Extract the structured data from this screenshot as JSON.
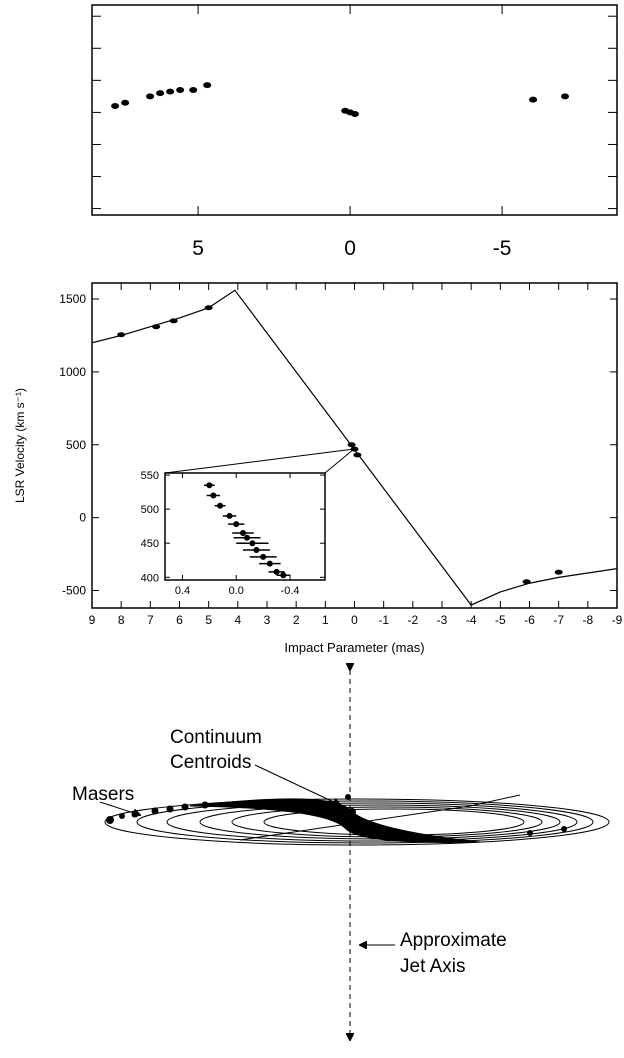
{
  "chart_data": [
    {
      "type": "scatter",
      "x": [
        7.73,
        7.4,
        6.58,
        6.25,
        5.92,
        5.59,
        5.16,
        4.7,
        0.16,
        0,
        -0.16,
        -6.02,
        -7.07
      ],
      "values": [
        0.04,
        0.06,
        0.1,
        0.12,
        0.13,
        0.14,
        0.14,
        0.17,
        0.01,
        0,
        -0.01,
        0.08,
        0.1
      ],
      "color": "#000000",
      "xlim": [
        8.49,
        -8.78
      ],
      "xticks": [
        5,
        0,
        -5
      ],
      "ylim": [
        -0.64,
        0.67
      ],
      "ytick_marks": [
        -0.6,
        -0.4,
        -0.2,
        0,
        0.2,
        0.4,
        0.6
      ]
    },
    {
      "type": "line",
      "ylabel": "LSR Velocity (km s⁻¹)",
      "xlabel": "Impact Parameter (mas)",
      "series": [
        {
          "style": "line",
          "color": "#000000",
          "x": [
            9,
            8,
            7,
            6,
            5,
            4.1,
            -4,
            -5,
            -6,
            -7,
            -8,
            -9
          ],
          "values": [
            1200,
            1250,
            1310,
            1370,
            1440,
            1560,
            -600,
            -510,
            -450,
            -410,
            -380,
            -350
          ]
        },
        {
          "style": "points",
          "color": "#000000",
          "x": [
            8,
            6.8,
            6.2,
            5,
            0.1,
            0,
            -0.1,
            -5.9,
            -7
          ],
          "values": [
            1255,
            1310,
            1350,
            1440,
            500,
            470,
            430,
            -440,
            -375
          ]
        }
      ],
      "xlim": [
        9,
        -9
      ],
      "xticks": [
        9,
        8,
        7,
        6,
        5,
        4,
        3,
        2,
        1,
        0,
        -1,
        -2,
        -3,
        -4,
        -5,
        -6,
        -7,
        -8,
        -9
      ],
      "ylim": [
        -620,
        1610
      ],
      "yticks": [
        -500,
        0,
        500,
        1000,
        1500
      ]
    },
    {
      "type": "errorbar",
      "color": "#000000",
      "x": [
        0.2,
        0.17,
        0.12,
        0.05,
        0.0,
        -0.05,
        -0.08,
        -0.12,
        -0.15,
        -0.2,
        -0.25,
        -0.3,
        -0.35
      ],
      "values": [
        535,
        520,
        505,
        490,
        478,
        465,
        458,
        450,
        440,
        430,
        420,
        408,
        403
      ],
      "xerr": [
        0.04,
        0.05,
        0.04,
        0.05,
        0.06,
        0.08,
        0.1,
        0.12,
        0.1,
        0.1,
        0.08,
        0.06,
        0.05
      ],
      "xlim": [
        0.53,
        -0.66
      ],
      "xticks": [
        0.4,
        {
          "value": 0,
          "label": "0.0"
        },
        -0.4
      ],
      "ylim": [
        396,
        553
      ],
      "yticks": [
        400,
        450,
        500,
        550
      ]
    }
  ],
  "diagram": {
    "continuum_label": [
      "Continuum",
      "Centroids"
    ],
    "masers_label": "Masers",
    "jet_label": [
      "Approximate",
      "Jet Axis"
    ]
  }
}
